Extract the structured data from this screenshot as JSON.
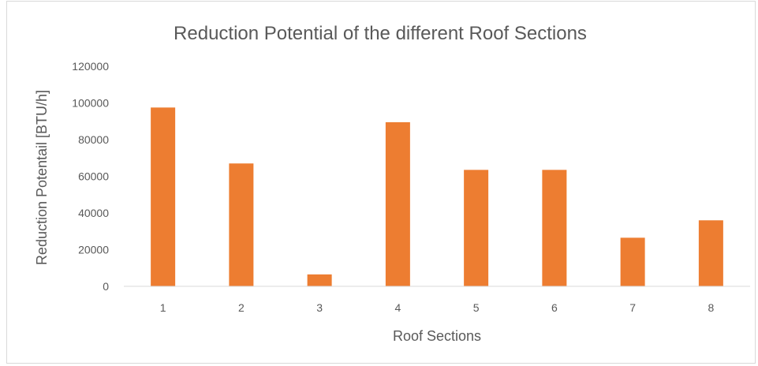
{
  "chart_data": {
    "type": "bar",
    "title": "Reduction Potential of the different Roof Sections",
    "xlabel": "Roof Sections",
    "ylabel": "Reduction Potentail [BTU/h]",
    "categories": [
      "1",
      "2",
      "3",
      "4",
      "5",
      "6",
      "7",
      "8"
    ],
    "values": [
      97500,
      67000,
      6500,
      89500,
      63500,
      63500,
      26500,
      36000
    ],
    "ylim": [
      0,
      120000
    ],
    "yticks": [
      "0",
      "20000",
      "40000",
      "60000",
      "80000",
      "100000",
      "120000"
    ],
    "bar_color": "#ED7D31",
    "grid": false,
    "legend": "none"
  }
}
